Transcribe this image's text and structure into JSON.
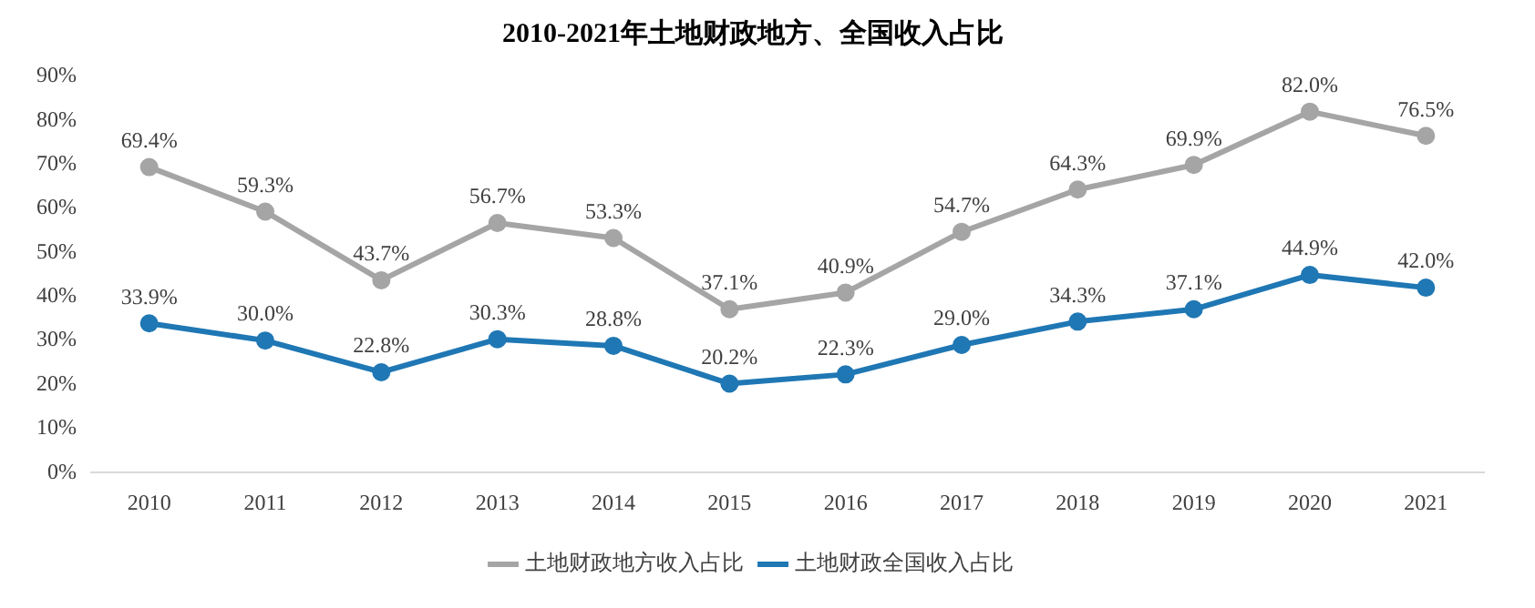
{
  "chart_data": {
    "type": "line",
    "title": "2010-2021年土地财政地方、全国收入占比",
    "categories": [
      "2010",
      "2011",
      "2012",
      "2013",
      "2014",
      "2015",
      "2016",
      "2017",
      "2018",
      "2019",
      "2020",
      "2021"
    ],
    "series": [
      {
        "name": "土地财政地方收入占比",
        "color": "#a5a5a5",
        "values": [
          69.4,
          59.3,
          43.7,
          56.7,
          53.3,
          37.1,
          40.9,
          54.7,
          64.3,
          69.9,
          82.0,
          76.5
        ],
        "value_labels": [
          "69.4%",
          "59.3%",
          "43.7%",
          "56.7%",
          "53.3%",
          "37.1%",
          "40.9%",
          "54.7%",
          "64.3%",
          "69.9%",
          "82.0%",
          "76.5%"
        ]
      },
      {
        "name": "土地财政全国收入占比",
        "color": "#1f77b4",
        "values": [
          33.9,
          30.0,
          22.8,
          30.3,
          28.8,
          20.2,
          22.3,
          29.0,
          34.3,
          37.1,
          44.9,
          42.0
        ],
        "value_labels": [
          "33.9%",
          "30.0%",
          "22.8%",
          "30.3%",
          "28.8%",
          "20.2%",
          "22.3%",
          "29.0%",
          "34.3%",
          "37.1%",
          "44.9%",
          "42.0%"
        ]
      }
    ],
    "ylim": [
      0,
      90
    ],
    "yticks": [
      {
        "value": 0,
        "label": "0%"
      },
      {
        "value": 10,
        "label": "10%"
      },
      {
        "value": 20,
        "label": "20%"
      },
      {
        "value": 30,
        "label": "30%"
      },
      {
        "value": 40,
        "label": "40%"
      },
      {
        "value": 50,
        "label": "50%"
      },
      {
        "value": 60,
        "label": "60%"
      },
      {
        "value": 70,
        "label": "70%"
      },
      {
        "value": 80,
        "label": "80%"
      },
      {
        "value": 90,
        "label": "90%"
      }
    ],
    "grid": false,
    "legend": "bottom",
    "marker": "circle",
    "line_style": "solid"
  }
}
